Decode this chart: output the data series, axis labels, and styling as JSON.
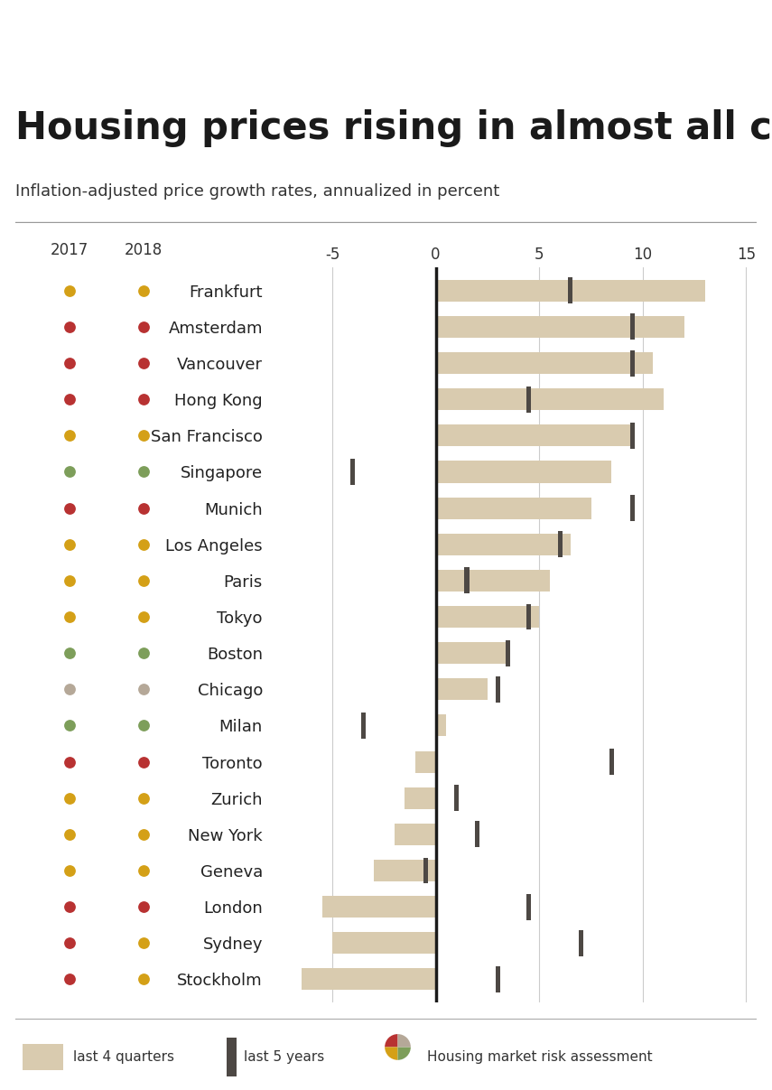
{
  "title": "Housing prices rising in almost all cities",
  "subtitle": "Inflation-adjusted price growth rates, annualized in percent",
  "cities": [
    "Frankfurt",
    "Amsterdam",
    "Vancouver",
    "Hong Kong",
    "San Francisco",
    "Singapore",
    "Munich",
    "Los Angeles",
    "Paris",
    "Tokyo",
    "Boston",
    "Chicago",
    "Milan",
    "Toronto",
    "Zurich",
    "New York",
    "Geneva",
    "London",
    "Sydney",
    "Stockholm"
  ],
  "bar_4q": [
    13.0,
    12.0,
    10.5,
    11.0,
    9.5,
    8.5,
    7.5,
    6.5,
    5.5,
    5.0,
    3.5,
    2.5,
    0.5,
    -1.0,
    -1.5,
    -2.0,
    -3.0,
    -5.5,
    -5.0,
    -6.5
  ],
  "tick_5y": [
    6.5,
    9.5,
    9.5,
    4.5,
    9.5,
    -4.0,
    9.5,
    6.0,
    1.5,
    4.5,
    3.5,
    3.0,
    -3.5,
    8.5,
    1.0,
    2.0,
    -0.5,
    4.5,
    7.0,
    3.0
  ],
  "dot_2017_color": [
    "#D4A017",
    "#B83232",
    "#B83232",
    "#B83232",
    "#D4A017",
    "#7D9E5A",
    "#B83232",
    "#D4A017",
    "#D4A017",
    "#D4A017",
    "#7D9E5A",
    "#B5A898",
    "#7D9E5A",
    "#B83232",
    "#D4A017",
    "#D4A017",
    "#D4A017",
    "#B83232",
    "#B83232",
    "#B83232"
  ],
  "dot_2018_color": [
    "#D4A017",
    "#B83232",
    "#B83232",
    "#B83232",
    "#D4A017",
    "#7D9E5A",
    "#B83232",
    "#D4A017",
    "#D4A017",
    "#D4A017",
    "#7D9E5A",
    "#B5A898",
    "#7D9E5A",
    "#B83232",
    "#D4A017",
    "#D4A017",
    "#D4A017",
    "#B83232",
    "#D4A017",
    "#D4A017"
  ],
  "bar_color": "#D9CBAF",
  "tick_color": "#4D4844",
  "xlim": [
    -8,
    15.5
  ],
  "xticks": [
    -5,
    0,
    5,
    10,
    15
  ],
  "background_color": "#FFFFFF",
  "title_fontsize": 30,
  "subtitle_fontsize": 13,
  "label_fontsize": 13,
  "tick_fontsize": 12,
  "col_header_fontsize": 12
}
